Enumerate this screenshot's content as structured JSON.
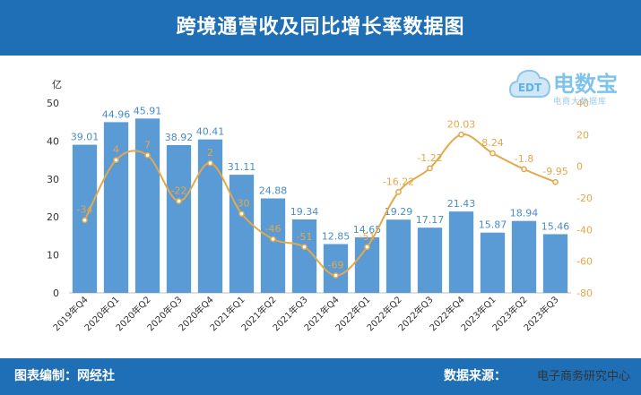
{
  "header": {
    "title": "跨境通营收及同比增长率数据图"
  },
  "footer": {
    "left": "图表编制：网经社",
    "right": "数据来源：",
    "watermark": "电子商务研究中心"
  },
  "logo": {
    "brand": "电数宝",
    "sub": "电商大数据库",
    "mark": "EDT"
  },
  "colors": {
    "bar": "#5b9bd5",
    "line": "#e3a84b",
    "header": "#1f6fb6",
    "axis": "#333333"
  },
  "chart_data": {
    "type": "bar",
    "categories": [
      "2019年Q4",
      "2020年Q1",
      "2020年Q2",
      "2020年Q3",
      "2020年Q4",
      "2021年Q1",
      "2021年Q2",
      "2021年Q3",
      "2021年Q4",
      "2022年Q1",
      "2022年Q2",
      "2022年Q3",
      "2022年Q4",
      "2023年Q1",
      "2023年Q2",
      "2023年Q3"
    ],
    "ylabel": "亿",
    "ylim": [
      0,
      50
    ],
    "yticks": [
      0,
      10,
      20,
      30,
      40,
      50
    ],
    "y2lim": [
      -80,
      40
    ],
    "y2ticks": [
      -80,
      -60,
      -40,
      -20,
      0,
      20,
      40
    ],
    "series": [
      {
        "type": "bar",
        "values": [
          39.01,
          44.96,
          45.91,
          38.92,
          40.41,
          31.11,
          24.88,
          19.34,
          12.85,
          14.65,
          19.29,
          17.17,
          21.43,
          15.87,
          18.94,
          15.46
        ]
      },
      {
        "type": "line",
        "axis": "right",
        "values": [
          -34,
          4,
          7,
          -22,
          2,
          -30,
          -46,
          -51,
          -69,
          -51,
          -16.22,
          -1.22,
          20.03,
          8.24,
          -1.8,
          -9.95
        ],
        "labels": [
          "-34",
          "4",
          "7",
          "-22",
          "2",
          "-30",
          "-46",
          "-51",
          "-69",
          "-51",
          "-16.22",
          "-1.22",
          "20.03",
          "8.24",
          "-1.8",
          "-9.95"
        ]
      }
    ],
    "grid": false
  }
}
